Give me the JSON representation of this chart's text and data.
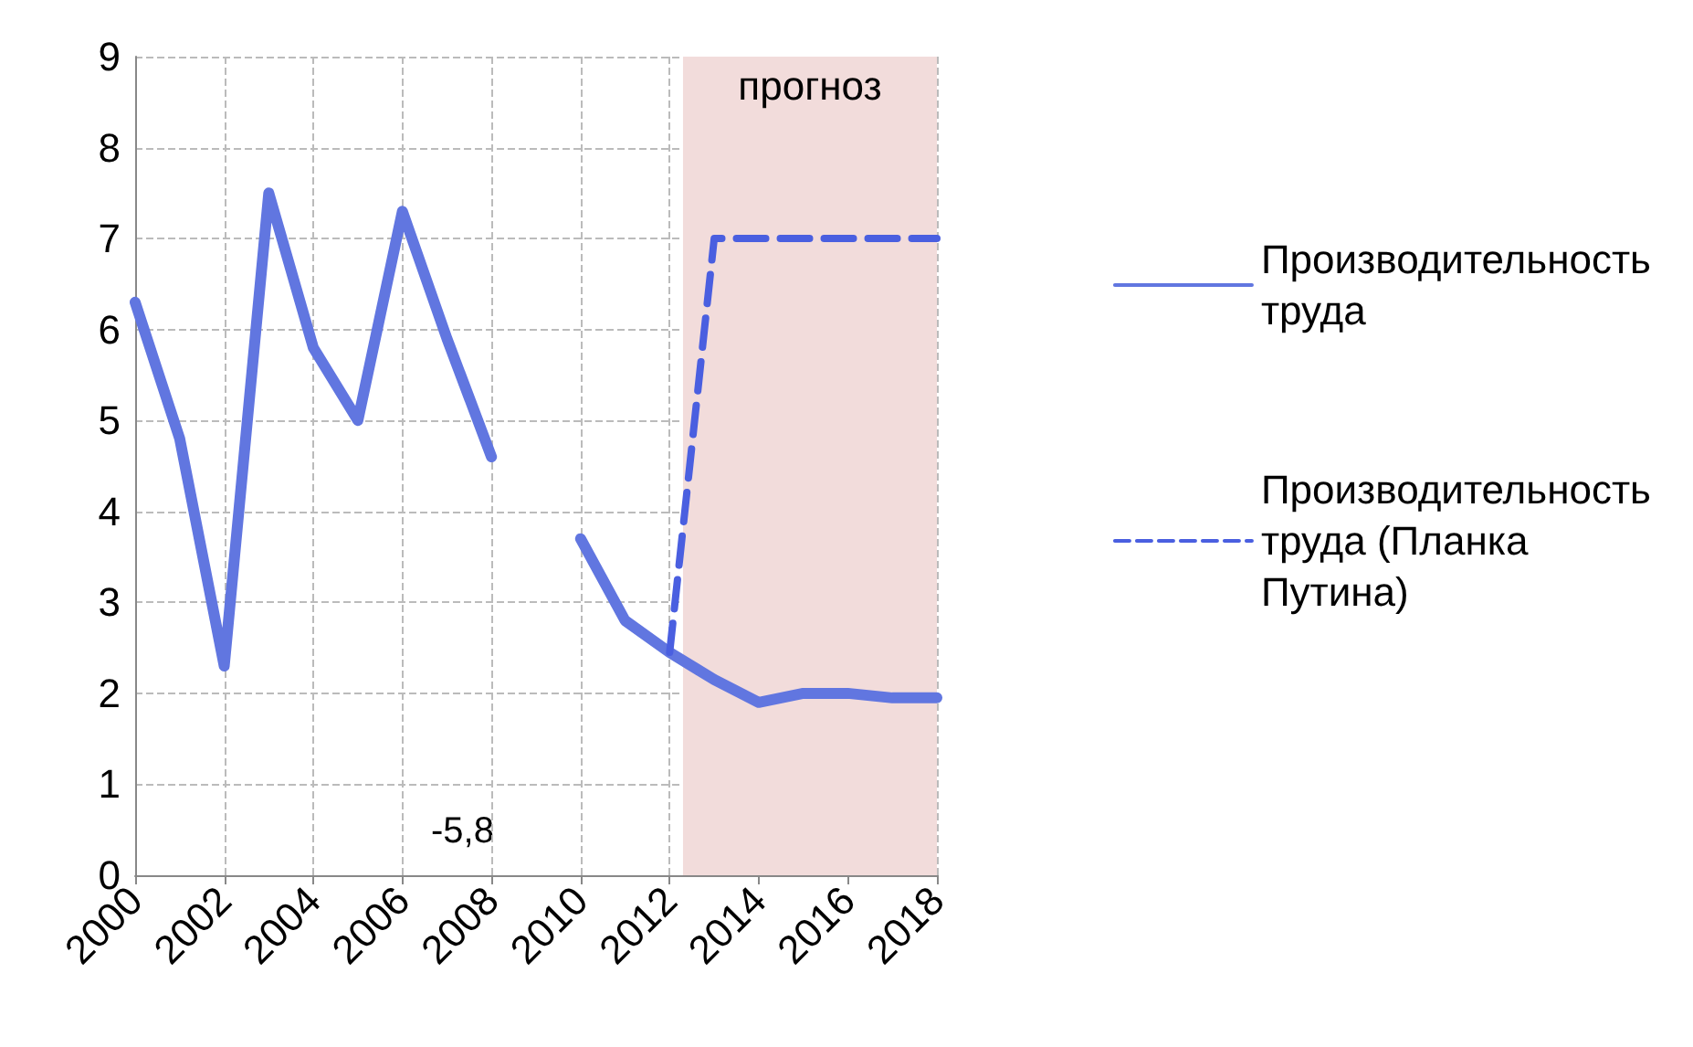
{
  "chart_data": {
    "type": "line",
    "x": [
      2000,
      2001,
      2002,
      2003,
      2004,
      2005,
      2006,
      2007,
      2008,
      2009,
      2010,
      2011,
      2012,
      2013,
      2014,
      2015,
      2016,
      2017,
      2018
    ],
    "series": [
      {
        "name": "Производительность труда",
        "color": "#6176e0",
        "values": [
          6.3,
          4.8,
          2.3,
          7.5,
          5.8,
          5.0,
          7.3,
          5.9,
          4.6,
          null,
          3.7,
          2.8,
          2.45,
          2.15,
          1.9,
          2.0,
          2.0,
          1.95,
          1.95
        ]
      },
      {
        "name": "Производительность труда (Планка Путина)",
        "color": "#4a5fe0",
        "line_style": "dashed",
        "values": [
          null,
          null,
          null,
          null,
          null,
          null,
          null,
          null,
          null,
          null,
          null,
          null,
          2.45,
          7.0,
          7.0,
          7.0,
          7.0,
          7.0,
          7.0
        ]
      }
    ],
    "xlim": [
      2000,
      2018
    ],
    "xticks": [
      2000,
      2002,
      2004,
      2006,
      2008,
      2010,
      2012,
      2014,
      2016,
      2018
    ],
    "ylim": [
      0,
      9
    ],
    "yticks": [
      0,
      1,
      2,
      3,
      4,
      5,
      6,
      7,
      8,
      9
    ],
    "bands": [
      {
        "axis": "x",
        "from": 2012.3,
        "to": 2018,
        "label": "прогноз",
        "color": "#f2dcdb"
      }
    ],
    "annotations": [
      "-5,8"
    ],
    "grid": true,
    "legend": "right",
    "line_style": "solid",
    "marker": "none"
  }
}
